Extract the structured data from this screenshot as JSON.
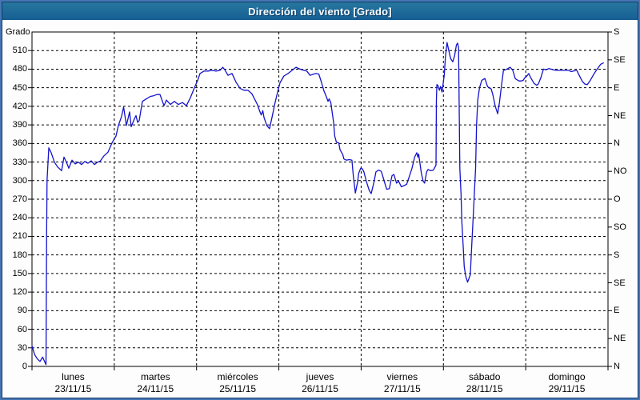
{
  "window": {
    "title": "Dirección del viento [Grado]"
  },
  "colors": {
    "title_bar": "#1e6b9d",
    "title_text": "#ffffff",
    "frame_outer": "#4576b5",
    "frame_inner": "#163a66",
    "background": "#fdfdfd",
    "plot_background": "#ffffff",
    "line": "#1412cb",
    "grid": "#000000",
    "text": "#000000"
  },
  "chart_data": {
    "type": "line",
    "title": "Dirección del viento [Grado]",
    "ylabel": "Grado",
    "ylim": [
      0,
      540
    ],
    "grid": "dashed",
    "legend": "none",
    "y_ticks_left": [
      0,
      30,
      60,
      90,
      120,
      150,
      180,
      210,
      240,
      270,
      300,
      330,
      360,
      390,
      420,
      450,
      480,
      510
    ],
    "y_ticks_right": [
      {
        "value": 0,
        "label": "N"
      },
      {
        "value": 45,
        "label": "NE"
      },
      {
        "value": 90,
        "label": "E"
      },
      {
        "value": 135,
        "label": "SE"
      },
      {
        "value": 180,
        "label": "S"
      },
      {
        "value": 225,
        "label": "SO"
      },
      {
        "value": 270,
        "label": "O"
      },
      {
        "value": 315,
        "label": "NO"
      },
      {
        "value": 360,
        "label": "N"
      },
      {
        "value": 405,
        "label": "NE"
      },
      {
        "value": 450,
        "label": "E"
      },
      {
        "value": 495,
        "label": "SE"
      },
      {
        "value": 540,
        "label": "S"
      }
    ],
    "x_range_days": [
      0,
      7
    ],
    "x_categories": [
      {
        "day": "lunes",
        "date": "23/11/15"
      },
      {
        "day": "martes",
        "date": "24/11/15"
      },
      {
        "day": "miércoles",
        "date": "25/11/15"
      },
      {
        "day": "jueves",
        "date": "26/11/15"
      },
      {
        "day": "viernes",
        "date": "27/11/15"
      },
      {
        "day": "sábado",
        "date": "28/11/15"
      },
      {
        "day": "domingo",
        "date": "29/11/15"
      }
    ],
    "series": [
      {
        "name": "Dirección del viento",
        "unit": "Grado",
        "color": "#1412cb",
        "points": [
          [
            0.0,
            33
          ],
          [
            0.032,
            19
          ],
          [
            0.065,
            12
          ],
          [
            0.097,
            8
          ],
          [
            0.129,
            15
          ],
          [
            0.146,
            10
          ],
          [
            0.162,
            5
          ],
          [
            0.17,
            3
          ],
          [
            0.175,
            130
          ],
          [
            0.178,
            215
          ],
          [
            0.183,
            300
          ],
          [
            0.185,
            305
          ],
          [
            0.204,
            353
          ],
          [
            0.233,
            345
          ],
          [
            0.272,
            330
          ],
          [
            0.311,
            322
          ],
          [
            0.36,
            316
          ],
          [
            0.389,
            338
          ],
          [
            0.418,
            330
          ],
          [
            0.447,
            320
          ],
          [
            0.486,
            333
          ],
          [
            0.525,
            327
          ],
          [
            0.564,
            330
          ],
          [
            0.603,
            326
          ],
          [
            0.642,
            331
          ],
          [
            0.68,
            328
          ],
          [
            0.719,
            332
          ],
          [
            0.758,
            326
          ],
          [
            0.797,
            330
          ],
          [
            0.826,
            331
          ],
          [
            0.875,
            340
          ],
          [
            0.924,
            346
          ],
          [
            0.972,
            361
          ],
          [
            1.021,
            372
          ],
          [
            1.05,
            389
          ],
          [
            1.089,
            404
          ],
          [
            1.113,
            419
          ],
          [
            1.147,
            389
          ],
          [
            1.186,
            411
          ],
          [
            1.206,
            387
          ],
          [
            1.245,
            400
          ],
          [
            1.264,
            405
          ],
          [
            1.283,
            394
          ],
          [
            1.303,
            397
          ],
          [
            1.342,
            428
          ],
          [
            1.39,
            432
          ],
          [
            1.439,
            436
          ],
          [
            1.478,
            437
          ],
          [
            1.517,
            439
          ],
          [
            1.556,
            439
          ],
          [
            1.604,
            421
          ],
          [
            1.633,
            430
          ],
          [
            1.682,
            423
          ],
          [
            1.73,
            428
          ],
          [
            1.779,
            423
          ],
          [
            1.828,
            426
          ],
          [
            1.876,
            421
          ],
          [
            1.925,
            434
          ],
          [
            1.974,
            450
          ],
          [
            2.013,
            462
          ],
          [
            2.042,
            473
          ],
          [
            2.09,
            477
          ],
          [
            2.139,
            477
          ],
          [
            2.188,
            478
          ],
          [
            2.236,
            477
          ],
          [
            2.285,
            478
          ],
          [
            2.319,
            483
          ],
          [
            2.343,
            479
          ],
          [
            2.382,
            470
          ],
          [
            2.431,
            473
          ],
          [
            2.479,
            459
          ],
          [
            2.528,
            449
          ],
          [
            2.576,
            446
          ],
          [
            2.625,
            446
          ],
          [
            2.674,
            440
          ],
          [
            2.739,
            423
          ],
          [
            2.771,
            411
          ],
          [
            2.786,
            406
          ],
          [
            2.805,
            413
          ],
          [
            2.819,
            402
          ],
          [
            2.853,
            389
          ],
          [
            2.887,
            384
          ],
          [
            2.917,
            402
          ],
          [
            2.951,
            424
          ],
          [
            2.985,
            443
          ],
          [
            3.014,
            458
          ],
          [
            3.062,
            469
          ],
          [
            3.111,
            473
          ],
          [
            3.16,
            478
          ],
          [
            3.208,
            483
          ],
          [
            3.257,
            480
          ],
          [
            3.306,
            478
          ],
          [
            3.34,
            477
          ],
          [
            3.379,
            470
          ],
          [
            3.422,
            472
          ],
          [
            3.451,
            473
          ],
          [
            3.485,
            472
          ],
          [
            3.519,
            458
          ],
          [
            3.548,
            445
          ],
          [
            3.582,
            434
          ],
          [
            3.597,
            428
          ],
          [
            3.611,
            432
          ],
          [
            3.631,
            426
          ],
          [
            3.665,
            394
          ],
          [
            3.679,
            372
          ],
          [
            3.699,
            362
          ],
          [
            3.728,
            361
          ],
          [
            3.743,
            350
          ],
          [
            3.777,
            342
          ],
          [
            3.791,
            335
          ],
          [
            3.82,
            333
          ],
          [
            3.859,
            334
          ],
          [
            3.888,
            333
          ],
          [
            3.905,
            307
          ],
          [
            3.93,
            280
          ],
          [
            3.956,
            297
          ],
          [
            3.971,
            312
          ],
          [
            3.995,
            320
          ],
          [
            4.015,
            319
          ],
          [
            4.034,
            314
          ],
          [
            4.063,
            299
          ],
          [
            4.099,
            284
          ],
          [
            4.122,
            279
          ],
          [
            4.158,
            299
          ],
          [
            4.18,
            314
          ],
          [
            4.212,
            317
          ],
          [
            4.245,
            315
          ],
          [
            4.277,
            301
          ],
          [
            4.31,
            286
          ],
          [
            4.343,
            287
          ],
          [
            4.375,
            308
          ],
          [
            4.397,
            310
          ],
          [
            4.43,
            296
          ],
          [
            4.456,
            299
          ],
          [
            4.489,
            290
          ],
          [
            4.521,
            292
          ],
          [
            4.553,
            294
          ],
          [
            4.586,
            307
          ],
          [
            4.618,
            320
          ],
          [
            4.65,
            338
          ],
          [
            4.676,
            345
          ],
          [
            4.689,
            338
          ],
          [
            4.699,
            343
          ],
          [
            4.732,
            312
          ],
          [
            4.754,
            299
          ],
          [
            4.771,
            296
          ],
          [
            4.796,
            314
          ],
          [
            4.813,
            318
          ],
          [
            4.845,
            316
          ],
          [
            4.878,
            317
          ],
          [
            4.91,
            325
          ],
          [
            4.915,
            430
          ],
          [
            4.92,
            455
          ],
          [
            4.932,
            454
          ],
          [
            4.951,
            446
          ],
          [
            4.964,
            452
          ],
          [
            4.983,
            443
          ],
          [
            5.01,
            470
          ],
          [
            5.024,
            500
          ],
          [
            5.044,
            523
          ],
          [
            5.072,
            506
          ],
          [
            5.088,
            497
          ],
          [
            5.114,
            492
          ],
          [
            5.136,
            502
          ],
          [
            5.158,
            519
          ],
          [
            5.172,
            522
          ],
          [
            5.184,
            515
          ],
          [
            5.199,
            320
          ],
          [
            5.214,
            278
          ],
          [
            5.224,
            234
          ],
          [
            5.241,
            191
          ],
          [
            5.253,
            161
          ],
          [
            5.272,
            145
          ],
          [
            5.294,
            136
          ],
          [
            5.327,
            148
          ],
          [
            5.342,
            191
          ],
          [
            5.359,
            234
          ],
          [
            5.375,
            278
          ],
          [
            5.391,
            320
          ],
          [
            5.403,
            390
          ],
          [
            5.417,
            430
          ],
          [
            5.439,
            450
          ],
          [
            5.466,
            462
          ],
          [
            5.504,
            465
          ],
          [
            5.536,
            452
          ],
          [
            5.552,
            450
          ],
          [
            5.581,
            448
          ],
          [
            5.6,
            439
          ],
          [
            5.63,
            420
          ],
          [
            5.659,
            408
          ],
          [
            5.681,
            426
          ],
          [
            5.707,
            455
          ],
          [
            5.729,
            478
          ],
          [
            5.755,
            479
          ],
          [
            5.784,
            481
          ],
          [
            5.811,
            483
          ],
          [
            5.843,
            478
          ],
          [
            5.872,
            465
          ],
          [
            5.891,
            463
          ],
          [
            5.92,
            461
          ],
          [
            5.949,
            461
          ],
          [
            5.969,
            462
          ],
          [
            5.988,
            466
          ],
          [
            6.008,
            468
          ],
          [
            6.037,
            473
          ],
          [
            6.066,
            465
          ],
          [
            6.102,
            457
          ],
          [
            6.134,
            454
          ],
          [
            6.153,
            456
          ],
          [
            6.183,
            466
          ],
          [
            6.215,
            480
          ],
          [
            6.251,
            479
          ],
          [
            6.28,
            481
          ],
          [
            6.309,
            480
          ],
          [
            6.329,
            479
          ],
          [
            6.377,
            478
          ],
          [
            6.426,
            478
          ],
          [
            6.475,
            478
          ],
          [
            6.523,
            478
          ],
          [
            6.555,
            476
          ],
          [
            6.582,
            477
          ],
          [
            6.621,
            478
          ],
          [
            6.65,
            470
          ],
          [
            6.689,
            460
          ],
          [
            6.718,
            456
          ],
          [
            6.747,
            455
          ],
          [
            6.776,
            460
          ],
          [
            6.832,
            473
          ],
          [
            6.873,
            481
          ],
          [
            6.912,
            488
          ],
          [
            6.944,
            490
          ]
        ]
      }
    ]
  }
}
